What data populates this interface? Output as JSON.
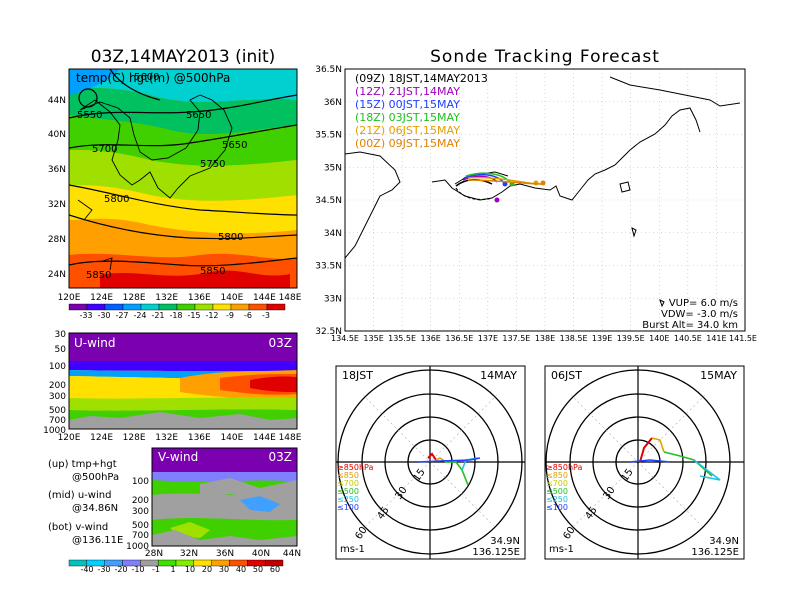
{
  "title_left": "03Z,14MAY2013 (init)",
  "title_right": "Sonde Tracking Forecast",
  "map_top": {
    "label": "temp(C)  hgt(m) @500hPa",
    "x_ticks": [
      "120E",
      "124E",
      "128E",
      "132E",
      "136E",
      "140E",
      "144E",
      "148E"
    ],
    "y_ticks": [
      "44N",
      "40N",
      "36N",
      "32N",
      "28N",
      "24N"
    ],
    "contour_labels": [
      "5550",
      "5600",
      "5650",
      "5700",
      "5750",
      "5800",
      "5800",
      "5850",
      "5850",
      "5650"
    ],
    "colorbar_labels": [
      "-33",
      "-30",
      "-27",
      "-24",
      "-21",
      "-18",
      "-15",
      "-12",
      "-9",
      "-6",
      "-3"
    ],
    "colors": [
      "#7a00b0",
      "#4000ff",
      "#0060ff",
      "#00a0ff",
      "#00d0d0",
      "#00c060",
      "#40d000",
      "#a0e000",
      "#ffe000",
      "#ffa000",
      "#ff5000",
      "#e00000"
    ]
  },
  "uwind": {
    "label": "U-wind",
    "time": "03Z",
    "y_ticks": [
      "30",
      "50",
      "100",
      "200",
      "300",
      "500",
      "700",
      "1000"
    ],
    "x_ticks": [
      "120E",
      "124E",
      "128E",
      "132E",
      "136E",
      "140E",
      "144E",
      "148E"
    ]
  },
  "vwind": {
    "label": "V-wind",
    "time": "03Z",
    "y_ticks": [
      "100",
      "200",
      "300",
      "500",
      "700",
      "1000"
    ],
    "x_ticks": [
      "28N",
      "32N",
      "36N",
      "40N",
      "44N"
    ]
  },
  "side_notes": [
    {
      "a": "(up)  tmp+hgt",
      "b": "@500hPa"
    },
    {
      "a": "(mid)  u-wind",
      "b": "@34.86N"
    },
    {
      "a": "(bot)  v-wind",
      "b": "@136.11E"
    }
  ],
  "wind_colorbar_labels": [
    "-40",
    "-30",
    "-20",
    "-10",
    "-1",
    "1",
    "10",
    "20",
    "30",
    "40",
    "50",
    "60"
  ],
  "wind_colors": [
    "#00c0c0",
    "#00d0ff",
    "#40a0ff",
    "#8080ff",
    "#a0a0a0",
    "#40e000",
    "#80f000",
    "#ffe000",
    "#ffa000",
    "#ff5000",
    "#e00000",
    "#c00000"
  ],
  "track_map": {
    "x_ticks": [
      "134.5E",
      "135E",
      "135.5E",
      "136E",
      "136.5E",
      "137E",
      "137.5E",
      "138E",
      "138.5E",
      "139E",
      "139.5E",
      "140E",
      "140.5E",
      "141E",
      "141.5E"
    ],
    "y_ticks": [
      "36.5N",
      "36N",
      "35.5N",
      "35N",
      "34.5N",
      "34N",
      "33.5N",
      "33N",
      "32.5N"
    ],
    "legend": [
      {
        "text": "(09Z)  18JST,14MAY2013",
        "color": "#000000"
      },
      {
        "text": "(12Z)  21JST,14MAY",
        "color": "#a000c0"
      },
      {
        "text": "(15Z)  00JST,15MAY",
        "color": "#2040ff"
      },
      {
        "text": "(18Z)  03JST,15MAY",
        "color": "#20c020"
      },
      {
        "text": "(21Z)  06JST,15MAY",
        "color": "#e0a000"
      },
      {
        "text": "(00Z)  09JST,15MAY",
        "color": "#e08000"
      }
    ],
    "params": [
      "VUP= 6.0 m/s",
      "VDW= -3.0 m/s",
      "Burst Alt= 34.0 km"
    ]
  },
  "hodo_left": {
    "time": "18JST",
    "date": "14MAY",
    "ring_labels": [
      "15",
      "30",
      "45",
      "60"
    ],
    "level_legend": [
      {
        "text": "≥850hPa",
        "color": "#e00000"
      },
      {
        "text": "≤850",
        "color": "#e0a000"
      },
      {
        "text": "≤700",
        "color": "#c8c800"
      },
      {
        "text": "≤500",
        "color": "#20c020"
      },
      {
        "text": "≤250",
        "color": "#20c0e0"
      },
      {
        "text": "≤100",
        "color": "#2040ff"
      }
    ],
    "unit": "ms-1",
    "lat": "34.9N",
    "lon": "136.125E"
  },
  "hodo_right": {
    "time": "06JST",
    "date": "15MAY",
    "ring_labels": [
      "15",
      "30",
      "45",
      "60"
    ],
    "level_legend": [
      {
        "text": "≥850hPa",
        "color": "#e00000"
      },
      {
        "text": "≤850",
        "color": "#e0a000"
      },
      {
        "text": "≤700",
        "color": "#c8c800"
      },
      {
        "text": "≤500",
        "color": "#20c020"
      },
      {
        "text": "≤250",
        "color": "#20c0e0"
      },
      {
        "text": "≤100",
        "color": "#2040ff"
      }
    ],
    "unit": "ms-1",
    "lat": "34.9N",
    "lon": "136.125E"
  }
}
